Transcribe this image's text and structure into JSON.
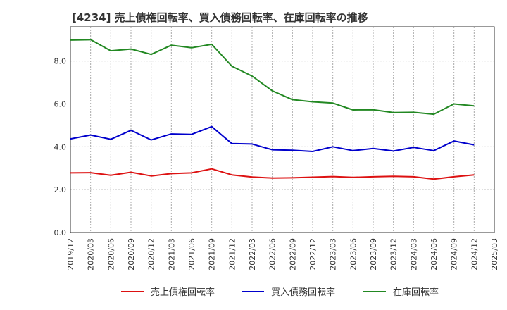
{
  "chart_data": {
    "type": "line",
    "title": "[4234]  売上債権回転率、買入債務回転率、在庫回転率の推移",
    "xlabel": "",
    "ylabel": "",
    "ylim": [
      0,
      9.6
    ],
    "yticks": [
      "0.0",
      "2.0",
      "4.0",
      "6.0",
      "8.0"
    ],
    "ytick_values": [
      0,
      2,
      4,
      6,
      8
    ],
    "x": [
      "2019/12",
      "2020/03",
      "2020/06",
      "2020/09",
      "2020/12",
      "2021/03",
      "2021/06",
      "2021/09",
      "2021/12",
      "2022/03",
      "2022/06",
      "2022/09",
      "2022/12",
      "2023/03",
      "2023/06",
      "2023/09",
      "2023/12",
      "2024/03",
      "2024/06",
      "2024/09",
      "2024/12",
      "2025/03"
    ],
    "grid": true,
    "legend_position": "bottom-center",
    "series": [
      {
        "name": "売上債権回転率",
        "color": "#dd1111",
        "values": [
          2.78,
          2.79,
          2.67,
          2.81,
          2.64,
          2.75,
          2.78,
          2.97,
          2.69,
          2.59,
          2.54,
          2.55,
          2.58,
          2.61,
          2.57,
          2.6,
          2.62,
          2.6,
          2.49,
          2.6,
          2.69,
          null
        ]
      },
      {
        "name": "買入債務回転率",
        "color": "#0000cc",
        "values": [
          4.37,
          4.55,
          4.35,
          4.77,
          4.32,
          4.6,
          4.58,
          4.94,
          4.15,
          4.13,
          3.86,
          3.84,
          3.78,
          4.0,
          3.82,
          3.92,
          3.8,
          3.97,
          3.82,
          4.27,
          4.09,
          null
        ]
      },
      {
        "name": "在庫回転率",
        "color": "#228822",
        "values": [
          8.98,
          9.0,
          8.48,
          8.56,
          8.31,
          8.74,
          8.62,
          8.78,
          7.76,
          7.3,
          6.61,
          6.2,
          6.1,
          6.04,
          5.72,
          5.73,
          5.6,
          5.61,
          5.52,
          6.0,
          5.91,
          null
        ]
      }
    ]
  }
}
